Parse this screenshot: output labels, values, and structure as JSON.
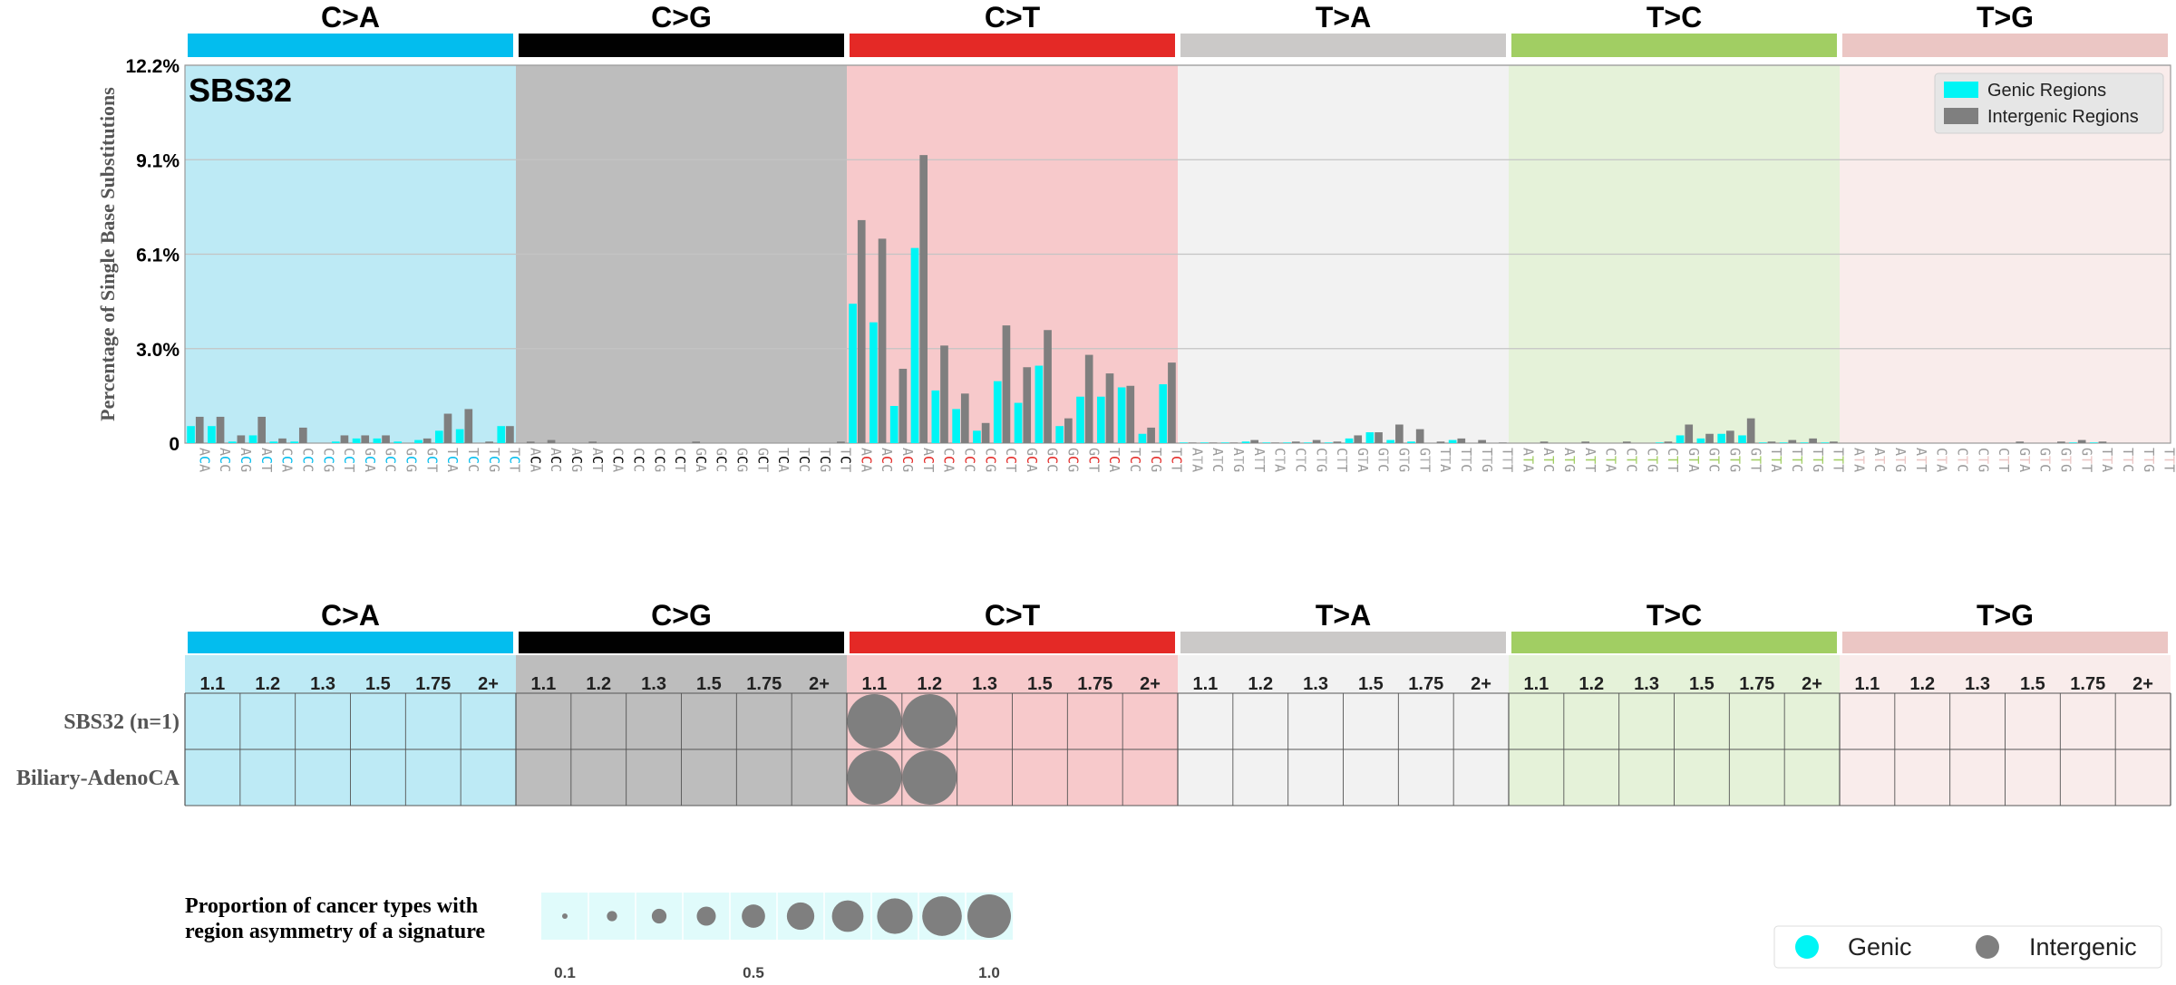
{
  "colors": {
    "mut": [
      "#03bdee",
      "#010101",
      "#e42926",
      "#cbc9c8",
      "#a1ce63",
      "#ebc6c4"
    ],
    "bg": [
      "#bdeaf5",
      "#bdbdbd",
      "#f7c9cb",
      "#f2f2f2",
      "#e5f2d9",
      "#f9eceb"
    ],
    "ctxMid": [
      "#03bdee",
      "#010101",
      "#e42926",
      "#b0b0b0",
      "#a1ce63",
      "#ebc6c4"
    ],
    "genic": "#00f5f5",
    "intergenic": "#7f7f7f"
  },
  "chart_data": [
    {
      "type": "bar",
      "signature": "SBS32",
      "mutation_types": [
        "C>A",
        "C>G",
        "C>T",
        "T>A",
        "T>C",
        "T>G"
      ],
      "categories": [
        "ACA",
        "ACC",
        "ACG",
        "ACT",
        "CCA",
        "CCC",
        "CCG",
        "CCT",
        "GCA",
        "GCC",
        "GCG",
        "GCT",
        "TCA",
        "TCC",
        "TCG",
        "TCT",
        "ACA",
        "ACC",
        "ACG",
        "ACT",
        "CCA",
        "CCC",
        "CCG",
        "CCT",
        "GCA",
        "GCC",
        "GCG",
        "GCT",
        "TCA",
        "TCC",
        "TCG",
        "TCT",
        "ACA",
        "ACC",
        "ACG",
        "ACT",
        "CCA",
        "CCC",
        "CCG",
        "CCT",
        "GCA",
        "GCC",
        "GCG",
        "GCT",
        "TCA",
        "TCC",
        "TCG",
        "TCT",
        "ATA",
        "ATC",
        "ATG",
        "ATT",
        "CTA",
        "CTC",
        "CTG",
        "CTT",
        "GTA",
        "GTC",
        "GTG",
        "GTT",
        "TTA",
        "TTC",
        "TTG",
        "TTT",
        "ATA",
        "ATC",
        "ATG",
        "ATT",
        "CTA",
        "CTC",
        "CTG",
        "CTT",
        "GTA",
        "GTC",
        "GTG",
        "GTT",
        "TTA",
        "TTC",
        "TTG",
        "TTT",
        "ATA",
        "ATC",
        "ATG",
        "ATT",
        "CTA",
        "CTC",
        "CTG",
        "CTT",
        "GTA",
        "GTC",
        "GTG",
        "GTT",
        "TTA",
        "TTC",
        "TTG",
        "TTT"
      ],
      "series": [
        {
          "name": "Genic Regions",
          "values": [
            0.55,
            0.55,
            0.05,
            0.25,
            0.05,
            0.05,
            0.0,
            0.05,
            0.15,
            0.15,
            0.05,
            0.1,
            0.4,
            0.45,
            0.0,
            0.55,
            0.0,
            0.0,
            0.0,
            0.0,
            0.0,
            0.0,
            0.0,
            0.0,
            0.0,
            0.0,
            0.0,
            0.0,
            0.0,
            0.0,
            0.0,
            0.0,
            4.5,
            3.9,
            1.2,
            6.3,
            1.7,
            1.1,
            0.4,
            2.0,
            1.3,
            2.5,
            0.55,
            1.5,
            1.5,
            1.8,
            0.3,
            1.9,
            0.02,
            0.02,
            0.02,
            0.05,
            0.02,
            0.02,
            0.02,
            0.02,
            0.15,
            0.35,
            0.1,
            0.05,
            0.0,
            0.1,
            0.0,
            0.0,
            0.0,
            0.0,
            0.0,
            0.0,
            0.0,
            0.0,
            0.0,
            0.02,
            0.25,
            0.15,
            0.3,
            0.25,
            0.02,
            0.02,
            0.02,
            0.02,
            0.0,
            0.0,
            0.0,
            0.0,
            0.0,
            0.0,
            0.0,
            0.0,
            0.0,
            0.0,
            0.0,
            0.02,
            0.02,
            0.0,
            0.0,
            0.0
          ]
        },
        {
          "name": "Intergenic Regions",
          "values": [
            0.85,
            0.85,
            0.25,
            0.85,
            0.15,
            0.5,
            0.0,
            0.25,
            0.25,
            0.25,
            0.0,
            0.15,
            0.95,
            1.1,
            0.05,
            0.55,
            0.05,
            0.1,
            0.0,
            0.05,
            0.0,
            0.0,
            0.0,
            0.0,
            0.05,
            0.0,
            0.0,
            0.0,
            0.0,
            0.0,
            0.0,
            0.05,
            7.2,
            6.6,
            2.4,
            9.3,
            3.15,
            1.6,
            0.65,
            3.8,
            2.45,
            3.65,
            0.8,
            2.85,
            2.25,
            1.85,
            0.5,
            2.6,
            0.02,
            0.02,
            0.02,
            0.1,
            0.02,
            0.05,
            0.1,
            0.05,
            0.25,
            0.35,
            0.6,
            0.45,
            0.05,
            0.15,
            0.1,
            0.02,
            0.0,
            0.05,
            0.0,
            0.05,
            0.0,
            0.05,
            0.0,
            0.05,
            0.6,
            0.3,
            0.4,
            0.8,
            0.05,
            0.1,
            0.15,
            0.05,
            0.0,
            0.0,
            0.0,
            0.0,
            0.0,
            0.0,
            0.0,
            0.0,
            0.05,
            0.0,
            0.05,
            0.1,
            0.05,
            0.0,
            0.0,
            0.0
          ]
        }
      ],
      "ylabel": "Percentage of Single Base Substitutions",
      "yticks": [
        "0",
        "3.0%",
        "6.1%",
        "9.1%",
        "12.2%"
      ],
      "ylim": [
        0,
        12.2
      ],
      "grid": true,
      "legend_position": "top-right"
    },
    {
      "type": "bubble-grid",
      "mutation_types": [
        "C>A",
        "C>G",
        "C>T",
        "T>A",
        "T>C",
        "T>G"
      ],
      "bins": [
        "1.1",
        "1.2",
        "1.3",
        "1.5",
        "1.75",
        "2+"
      ],
      "rows": [
        "SBS32 (n=1)",
        "Biliary-AdenoCA"
      ],
      "points": [
        {
          "row": 0,
          "mutation_type": 2,
          "bin": 0,
          "proportion": 1.0,
          "region": "Intergenic"
        },
        {
          "row": 0,
          "mutation_type": 2,
          "bin": 1,
          "proportion": 1.0,
          "region": "Intergenic"
        },
        {
          "row": 1,
          "mutation_type": 2,
          "bin": 0,
          "proportion": 1.0,
          "region": "Intergenic"
        },
        {
          "row": 1,
          "mutation_type": 2,
          "bin": 1,
          "proportion": 1.0,
          "region": "Intergenic"
        }
      ],
      "size_legend": {
        "title_line1": "Proportion of cancer types with",
        "title_line2": "region asymmetry of a signature",
        "values": [
          0.1,
          0.2,
          0.3,
          0.4,
          0.5,
          0.6,
          0.7,
          0.8,
          0.9,
          1.0
        ],
        "labels": [
          "0.1",
          "0.5",
          "1.0"
        ]
      },
      "legend": [
        "Genic",
        "Intergenic"
      ]
    }
  ]
}
